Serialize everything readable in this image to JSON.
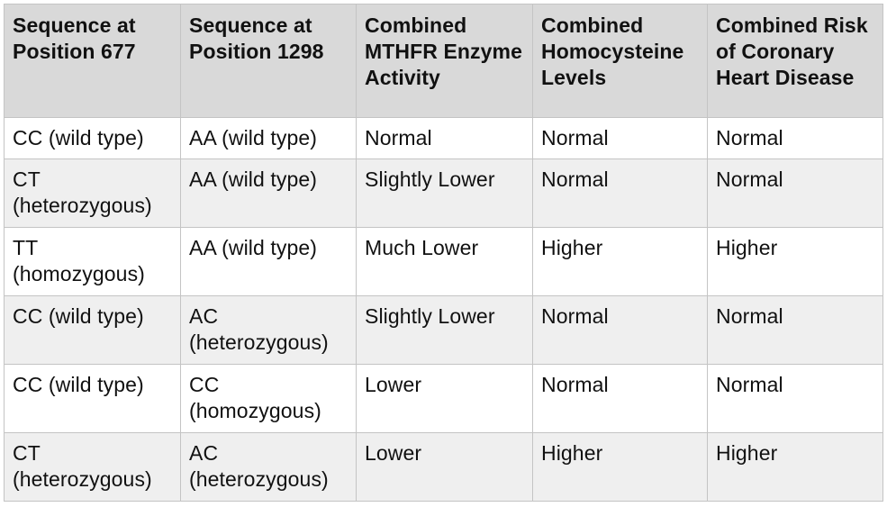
{
  "table": {
    "headers": [
      "Sequence at Position 677",
      "Sequence at Position 1298",
      "Combined MTHFR Enzyme Activity",
      "Combined Homocysteine Levels",
      "Combined Risk of Coronary Heart Disease"
    ],
    "rows": [
      [
        "CC (wild type)",
        "AA (wild type)",
        "Normal",
        "Normal",
        "Normal"
      ],
      [
        "CT (heterozygous)",
        "AA (wild type)",
        "Slightly Lower",
        "Normal",
        "Normal"
      ],
      [
        "TT (homozygous)",
        "AA (wild type)",
        "Much Lower",
        "Higher",
        "Higher"
      ],
      [
        "CC (wild type)",
        "AC (heterozygous)",
        "Slightly Lower",
        "Normal",
        "Normal"
      ],
      [
        "CC (wild type)",
        "CC (homozygous)",
        "Lower",
        "Normal",
        "Normal"
      ],
      [
        "CT (heterozygous)",
        "AC (heterozygous)",
        "Lower",
        "Higher",
        "Higher"
      ]
    ]
  },
  "colors": {
    "header_bg": "#d9d9d9",
    "row_alt_bg": "#efefef",
    "row_bg": "#ffffff",
    "border": "#c4c4c4"
  }
}
